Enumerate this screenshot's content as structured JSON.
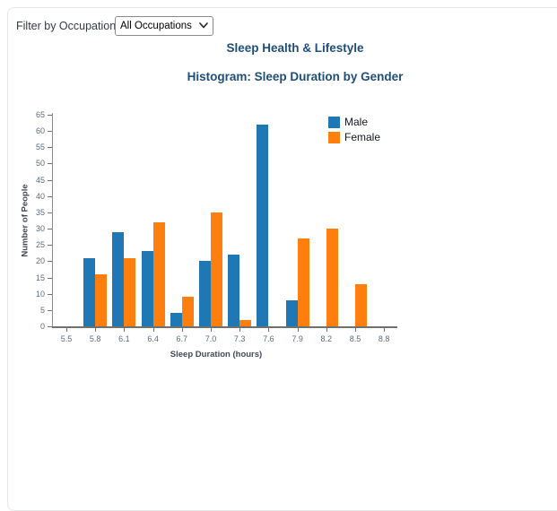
{
  "filter": {
    "label": "Filter by Occupation:",
    "selected": "All Occupations"
  },
  "titles": {
    "main": "Sleep Health & Lifestyle",
    "sub": "Histogram: Sleep Duration by Gender"
  },
  "colors": {
    "male": "#1f77b4",
    "female": "#ff7f0e",
    "title_text": "#1f4e79",
    "axis_line": "#8c8c8c",
    "tick_text": "#5a6b7c"
  },
  "chart_data": {
    "type": "bar",
    "title": "Histogram: Sleep Duration by Gender",
    "xlabel": "Sleep Duration (hours)",
    "ylabel": "Number of People",
    "categories": [
      "5.5",
      "5.8",
      "6.1",
      "6.4",
      "6.7",
      "7.0",
      "7.3",
      "7.6",
      "7.9",
      "8.2",
      "8.5",
      "8.8"
    ],
    "series": [
      {
        "name": "Male",
        "color": "#1f77b4",
        "values": [
          0,
          21,
          29,
          23,
          4,
          20,
          22,
          62,
          8,
          0,
          0,
          0
        ]
      },
      {
        "name": "Female",
        "color": "#ff7f0e",
        "values": [
          0,
          16,
          21,
          32,
          9,
          35,
          2,
          0,
          27,
          30,
          13,
          0
        ]
      }
    ],
    "ylim": [
      0,
      65
    ],
    "ytick_step": 5,
    "grid": false,
    "legend_position": "inside-top-right"
  }
}
